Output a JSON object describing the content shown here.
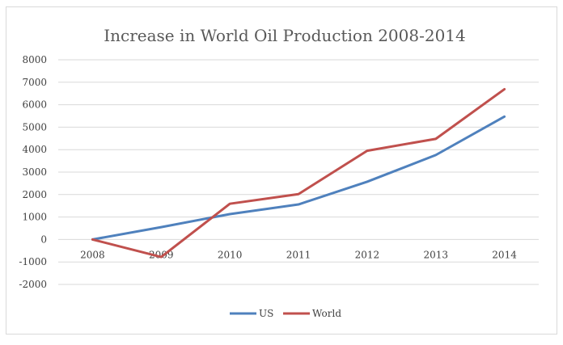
{
  "chart_data": {
    "type": "line",
    "title": "Increase in World Oil Production 2008-2014",
    "xlabel": "",
    "ylabel": "",
    "categories": [
      "2008",
      "2009",
      "2010",
      "2011",
      "2012",
      "2013",
      "2014"
    ],
    "ylim": [
      -2000,
      8000
    ],
    "yticks": [
      8000,
      7000,
      6000,
      5000,
      4000,
      3000,
      2000,
      1000,
      0,
      -1000,
      -2000
    ],
    "grid": true,
    "legend_position": "bottom",
    "series": [
      {
        "name": "US",
        "color": "#4f81bd",
        "values": [
          0,
          550,
          1130,
          1560,
          2570,
          3760,
          5470
        ]
      },
      {
        "name": "World",
        "color": "#c0504d",
        "values": [
          0,
          -780,
          1590,
          2020,
          3950,
          4480,
          6690
        ]
      }
    ]
  }
}
